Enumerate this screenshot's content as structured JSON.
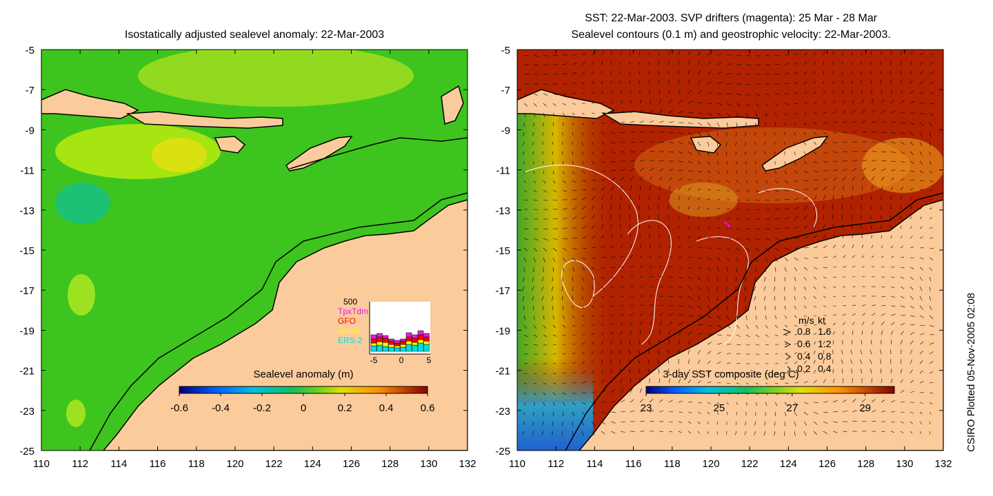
{
  "left_panel": {
    "title": "Isostatically adjusted sealevel anomaly: 22-Mar-2003",
    "colorbar": {
      "label": "Sealevel anomaly (m)",
      "ticks": [
        "-0.6",
        "-0.4",
        "-0.2",
        "0",
        "0.2",
        "0.4",
        "0.6"
      ],
      "range": [
        -0.6,
        0.6
      ]
    },
    "histogram": {
      "ymax_label": "500",
      "legend": [
        {
          "name": "TpxTdm",
          "color": "#e020e0"
        },
        {
          "name": "GFO",
          "color": "#ff0000"
        },
        {
          "name": "Jason",
          "color": "#ffff00"
        },
        {
          "name": "ERS-2",
          "color": "#00e0e0"
        }
      ],
      "xticks": [
        "-5",
        "0",
        "5"
      ]
    }
  },
  "right_panel": {
    "title_line1": "SST: 22-Mar-2003. SVP drifters (magenta): 25 Mar - 28 Mar",
    "title_line2": "Sealevel contours (0.1 m) and geostrophic velocity: 22-Mar-2003.",
    "colorbar": {
      "label": "3-day SST composite (deg C)",
      "ticks": [
        "23",
        "25",
        "27",
        "29"
      ],
      "range": [
        23,
        29.8
      ]
    },
    "speed_legend": {
      "header_ms": "m/s",
      "header_kt": "kt",
      "rows": [
        {
          "ms": "0.8",
          "kt": "1.6"
        },
        {
          "ms": "0.6",
          "kt": "1.2"
        },
        {
          "ms": "0.4",
          "kt": "0.8"
        },
        {
          "ms": "0.2",
          "kt": "0.4"
        }
      ]
    }
  },
  "axes": {
    "lon_ticks": [
      "110",
      "112",
      "114",
      "116",
      "118",
      "120",
      "122",
      "124",
      "126",
      "128",
      "130",
      "132"
    ],
    "lat_ticks": [
      "-5",
      "-7",
      "-9",
      "-11",
      "-13",
      "-15",
      "-17",
      "-19",
      "-21",
      "-23",
      "-25"
    ],
    "lon_range": [
      110,
      132
    ],
    "lat_range": [
      -25,
      -5
    ]
  },
  "credit": "CSIRO Plotted 05-Nov-2005 02:08",
  "colors": {
    "land": "#fbcb9b",
    "ocean_left": "#2fc21f",
    "ocean_right": "#b02200"
  }
}
